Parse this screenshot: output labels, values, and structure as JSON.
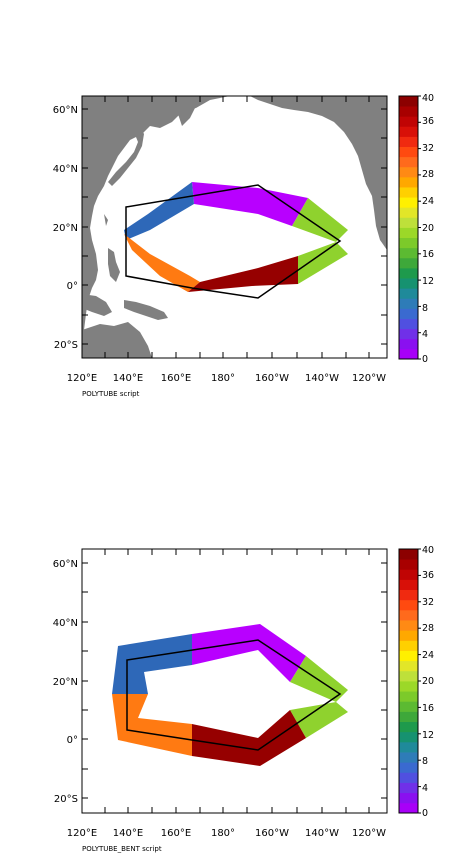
{
  "panels": [
    {
      "caption": "POLYTUBE script",
      "lat_labels": [
        "60°N",
        "40°N",
        "20°N",
        "0°",
        "20°S"
      ],
      "lon_labels": [
        "120°E",
        "140°E",
        "160°E",
        "180°",
        "160°W",
        "140°W",
        "120°W"
      ]
    },
    {
      "caption": "POLYTUBE_BENT script",
      "lat_labels": [
        "60°N",
        "40°N",
        "20°N",
        "0°",
        "20°S"
      ],
      "lon_labels": [
        "120°E",
        "140°E",
        "160°E",
        "180°",
        "160°W",
        "140°W",
        "120°W"
      ]
    }
  ],
  "colorbar": {
    "labels": [
      "40",
      "36",
      "32",
      "28",
      "24",
      "20",
      "16",
      "12",
      "8",
      "4",
      "0"
    ],
    "colors": [
      "#A800F8",
      "#8A10F0",
      "#7030E8",
      "#5050E0",
      "#3A6AD0",
      "#2E7CB8",
      "#1F8A9A",
      "#169270",
      "#1E9A4C",
      "#3EA83A",
      "#5CBA32",
      "#7CCA2A",
      "#9CD828",
      "#BEE03A",
      "#E2E628",
      "#FFF000",
      "#FFD000",
      "#FFA800",
      "#FF8A14",
      "#FF6A1C",
      "#FF4A10",
      "#F02A10",
      "#D81008",
      "#C00404",
      "#A80000",
      "#8C0000"
    ]
  },
  "colors": {
    "land": "#808080",
    "purple": "#B800FF",
    "blue": "#2E68B8",
    "orange": "#FF7A12",
    "darkred": "#960000",
    "green": "#8FD22E"
  }
}
